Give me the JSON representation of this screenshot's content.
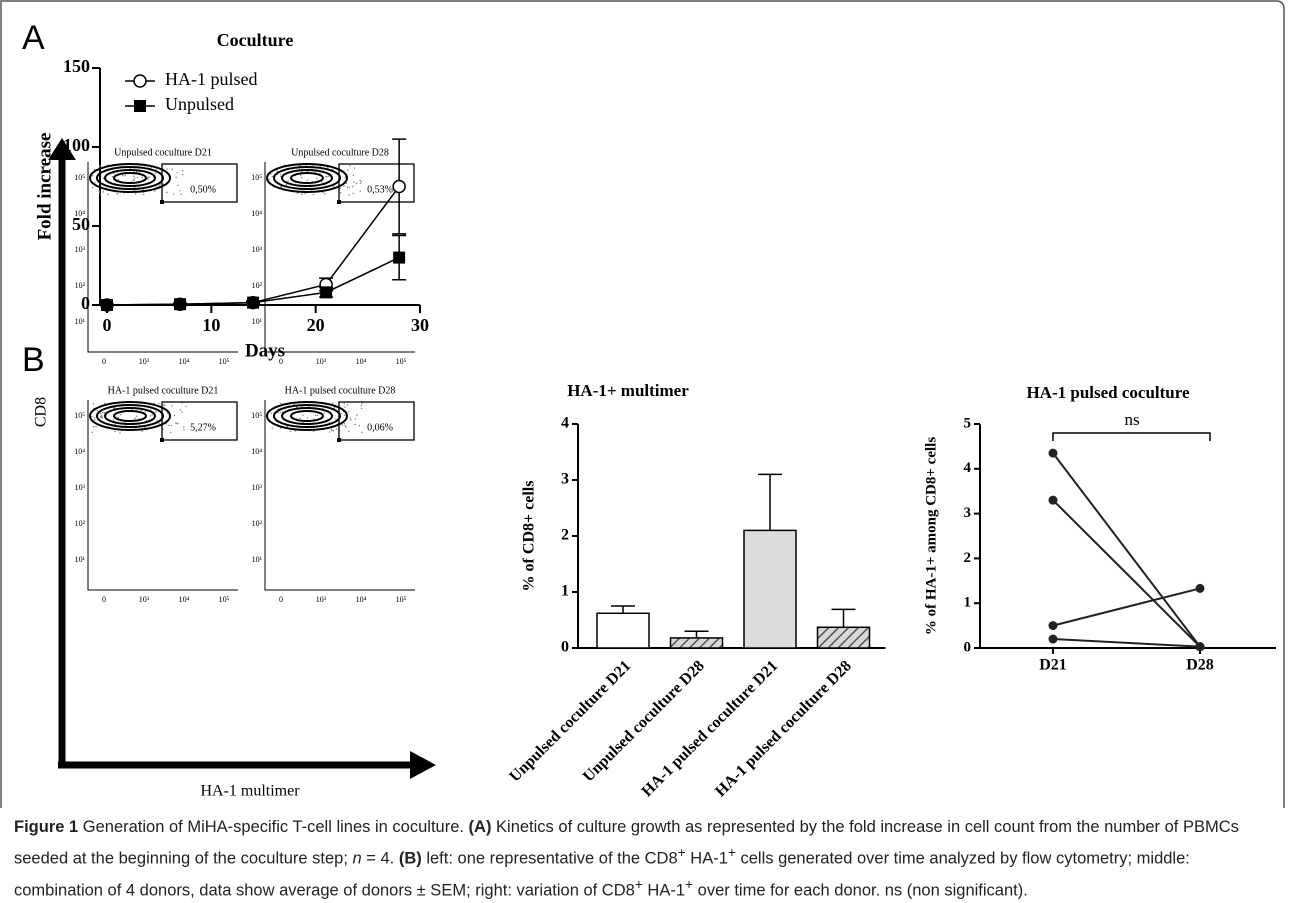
{
  "panels": {
    "a": "A",
    "b": "B"
  },
  "chart_data": [
    {
      "type": "line",
      "title": "Coculture",
      "xlabel": "Days",
      "ylabel": "Fold increase",
      "x": [
        0,
        7,
        14,
        21,
        28
      ],
      "xlim": [
        0,
        30
      ],
      "xticks": [
        0,
        10,
        20,
        30
      ],
      "ylim": [
        0,
        150
      ],
      "yticks": [
        0,
        50,
        100,
        150
      ],
      "legend": "top-left",
      "series": [
        {
          "name": "HA-1 pulsed",
          "color": "#000000",
          "marker": "circle-open",
          "values": [
            0,
            0.5,
            1.5,
            13,
            75
          ],
          "errors": [
            0,
            0.3,
            1,
            4,
            30
          ]
        },
        {
          "name": "Unpulsed",
          "color": "#000000",
          "marker": "square",
          "values": [
            0,
            0.5,
            1.5,
            8,
            30
          ],
          "errors": [
            0,
            0.3,
            0.8,
            3,
            14
          ]
        }
      ]
    },
    {
      "type": "bar",
      "title": "HA-1+ multimer",
      "ylabel": "% of CD8+ cells",
      "categories": [
        "Unpulsed coculture D21",
        "Unpulsed coculture D28",
        "HA-1 pulsed coculture D21",
        "HA-1 pulsed coculture D28"
      ],
      "values": [
        0.62,
        0.18,
        2.1,
        0.37
      ],
      "errors": [
        0.13,
        0.12,
        1.0,
        0.32
      ],
      "colors": [
        "#ffffff",
        "#bbbbbb",
        "#dddddd",
        "#bbbbbb"
      ],
      "hatched": [
        false,
        true,
        false,
        true
      ],
      "ylim": [
        0,
        4
      ],
      "yticks": [
        0,
        1,
        2,
        3,
        4
      ]
    },
    {
      "type": "paired",
      "title": "HA-1 pulsed coculture",
      "ylabel": "% of HA-1+ among CD8+ cells",
      "categories": [
        "D21",
        "D28"
      ],
      "ylim": [
        0,
        5
      ],
      "yticks": [
        0,
        1,
        2,
        3,
        4,
        5
      ],
      "annotation": "ns",
      "series": [
        {
          "color": "#222222",
          "values": [
            4.35,
            0.03
          ]
        },
        {
          "color": "#222222",
          "values": [
            3.3,
            0.03
          ]
        },
        {
          "color": "#222222",
          "values": [
            0.5,
            1.33
          ]
        },
        {
          "color": "#222222",
          "values": [
            0.2,
            0.03
          ]
        }
      ]
    }
  ],
  "flow": {
    "ylabel": "CD8",
    "xlabel": "HA-1 multimer",
    "yticks": [
      "10⁵",
      "10⁴",
      "10³",
      "10²",
      "10¹"
    ],
    "xticks": [
      "0",
      "10³",
      "10⁴",
      "10⁵"
    ],
    "plots": [
      {
        "title": "Unpulsed coculture D21",
        "gate": "0,50%"
      },
      {
        "title": "Unpulsed coculture D28",
        "gate": "0,53%"
      },
      {
        "title": "HA-1 pulsed coculture D21",
        "gate": "5,27%"
      },
      {
        "title": "HA-1 pulsed coculture D28",
        "gate": "0,06%"
      }
    ]
  },
  "caption": [
    {
      "text": "Figure 1",
      "style": "b"
    },
    {
      "text": " Generation of MiHA-specific T-cell lines in coculture. "
    },
    {
      "text": "(A)",
      "style": "b"
    },
    {
      "text": " Kinetics of culture growth as represented by the fold increase in cell count from the number of PBMCs seeded at the beginning of the coculture step; "
    },
    {
      "text": "n",
      "style": "i"
    },
    {
      "text": " = 4. "
    },
    {
      "text": "(B)",
      "style": "b"
    },
    {
      "text": " left: one representative of the CD8"
    },
    {
      "text": "+",
      "style": "sup"
    },
    {
      "text": " HA-1"
    },
    {
      "text": "+",
      "style": "sup"
    },
    {
      "text": " cells generated over time analyzed by flow cytometry; middle: combination of 4 donors, data show average of donors ± SEM; right: variation of CD8"
    },
    {
      "text": "+",
      "style": "sup"
    },
    {
      "text": " HA-1"
    },
    {
      "text": "+",
      "style": "sup"
    },
    {
      "text": " over time for each donor. ns (non significant)."
    }
  ]
}
